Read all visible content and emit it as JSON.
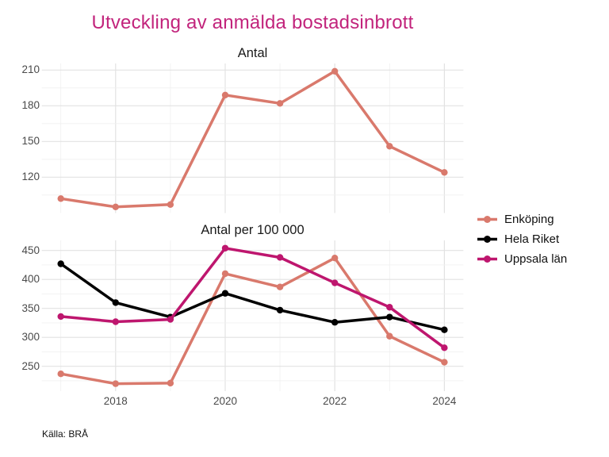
{
  "title": {
    "text": "Utveckling av anmälda bostadsinbrott",
    "color": "#C2247C"
  },
  "caption": "Källa: BRÅ",
  "legend": {
    "position": "right",
    "items": [
      {
        "label": "Enköping",
        "color": "#D9796C"
      },
      {
        "label": "Hela Riket",
        "color": "#000000"
      },
      {
        "label": "Uppsala län",
        "color": "#BE166E"
      }
    ]
  },
  "grid": {
    "major_color": "#E2E2E2",
    "minor_color": "#F0F0F0"
  },
  "chart_data": [
    {
      "type": "line",
      "title": "Antal",
      "x": [
        2017,
        2018,
        2019,
        2020,
        2021,
        2022,
        2023,
        2024
      ],
      "x_ticks": [
        2018,
        2020,
        2022,
        2024
      ],
      "x_tick_labels": [
        "2018",
        "2020",
        "2022",
        "2024"
      ],
      "y_ticks": [
        120,
        150,
        180,
        210
      ],
      "ylim": [
        90,
        215
      ],
      "grid": true,
      "series": [
        {
          "name": "Enköping",
          "color": "#D9796C",
          "values": [
            102,
            95,
            97,
            189,
            182,
            209,
            146,
            124
          ]
        }
      ]
    },
    {
      "type": "line",
      "title": "Antal per 100 000",
      "x": [
        2017,
        2018,
        2019,
        2020,
        2021,
        2022,
        2023,
        2024
      ],
      "x_ticks": [
        2018,
        2020,
        2022,
        2024
      ],
      "x_tick_labels": [
        "2018",
        "2020",
        "2022",
        "2024"
      ],
      "y_ticks": [
        250,
        300,
        350,
        400,
        450
      ],
      "ylim": [
        207,
        467
      ],
      "grid": true,
      "series": [
        {
          "name": "Enköping",
          "color": "#D9796C",
          "values": [
            237,
            220,
            221,
            410,
            387,
            437,
            302,
            257
          ]
        },
        {
          "name": "Hela Riket",
          "color": "#000000",
          "values": [
            427,
            360,
            335,
            376,
            347,
            326,
            335,
            313
          ]
        },
        {
          "name": "Uppsala län",
          "color": "#BE166E",
          "values": [
            336,
            327,
            331,
            454,
            438,
            394,
            352,
            282
          ]
        }
      ]
    }
  ]
}
